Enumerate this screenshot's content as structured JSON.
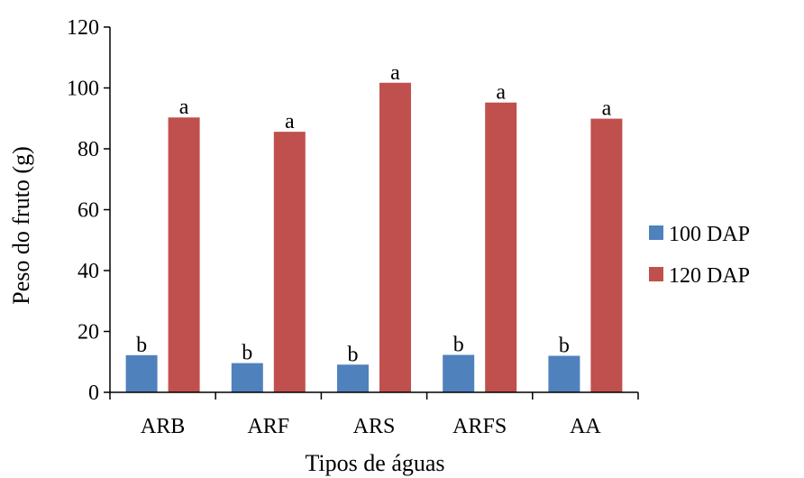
{
  "chart_data": {
    "type": "bar",
    "title": "",
    "xlabel": "Tipos de águas",
    "ylabel": "Peso do fruto (g)",
    "ylim": [
      0,
      120
    ],
    "yticks": [
      0,
      20,
      40,
      60,
      80,
      100,
      120
    ],
    "categories": [
      "ARB",
      "ARF",
      "ARS",
      "ARFS",
      "AA"
    ],
    "series": [
      {
        "name": "100 DAP",
        "color": "#4f81bd",
        "values": [
          12.2,
          9.6,
          9.1,
          12.3,
          12.0
        ],
        "labels": [
          "b",
          "b",
          "b",
          "b",
          "b"
        ]
      },
      {
        "name": "120 DAP",
        "color": "#c0504d",
        "values": [
          90.3,
          85.6,
          101.7,
          95.2,
          89.9
        ],
        "labels": [
          "a",
          "a",
          "a",
          "a",
          "a"
        ]
      }
    ],
    "grid": false,
    "legend_position": "right"
  }
}
